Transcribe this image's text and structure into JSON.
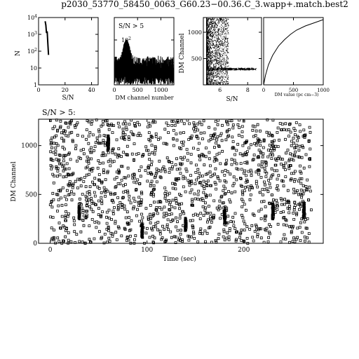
{
  "title": "p2030_53770_58450_0063_G60.23−00.36.C_3.wapp+.match.best2",
  "chart_data": [
    {
      "id": "panel_sn_hist",
      "type": "line",
      "xlabel": "S/N",
      "ylabel": "N",
      "xlim": [
        0,
        45
      ],
      "ylim": [
        1,
        10000
      ],
      "yscale": "log",
      "x_ticks": [
        0,
        20,
        40
      ],
      "y_ticks": [
        1,
        10,
        100,
        1000,
        10000
      ],
      "series": [
        {
          "x": [
            5,
            5.5,
            6,
            6.5,
            7,
            7.5
          ],
          "y": [
            6000,
            3500,
            1200,
            1500,
            300,
            60
          ]
        }
      ]
    },
    {
      "id": "panel_dm_hist",
      "type": "line",
      "annotation": "S/N > 5",
      "xlabel": "DM channel number",
      "ylabel": "",
      "xlim": [
        0,
        1280
      ],
      "ylim": [
        1,
        1000
      ],
      "yscale": "log",
      "x_ticks": [
        0,
        500,
        1000
      ],
      "y_ticks": [
        10,
        100
      ]
    },
    {
      "id": "panel_sn_dm",
      "type": "scatter",
      "xlabel": "S/N",
      "ylabel": "DM Channel",
      "xlim": [
        4.8,
        9
      ],
      "ylim": [
        0,
        1280
      ],
      "x_ticks": [
        6,
        8
      ],
      "y_ticks": [
        500,
        1000
      ]
    },
    {
      "id": "panel_dm_curve",
      "type": "line",
      "xlabel": "DM value (pc cm−3)",
      "ylabel": "",
      "xlim": [
        0,
        1000
      ],
      "ylim": [
        0,
        1280
      ],
      "x_ticks": [
        0,
        500,
        1000
      ],
      "series": [
        {
          "x": [
            0,
            30,
            80,
            150,
            250,
            350,
            450,
            550,
            700,
            850,
            1000
          ],
          "y": [
            0,
            180,
            380,
            560,
            740,
            860,
            960,
            1040,
            1120,
            1180,
            1240
          ]
        }
      ]
    },
    {
      "id": "panel_main",
      "type": "scatter",
      "annotation": "S/N > 5:",
      "xlabel": "Time (sec)",
      "ylabel": "DM Channel",
      "xlim": [
        -12,
        282
      ],
      "ylim": [
        0,
        1270
      ],
      "x_ticks": [
        0,
        100,
        200
      ],
      "y_ticks": [
        0,
        500,
        1000
      ]
    }
  ]
}
